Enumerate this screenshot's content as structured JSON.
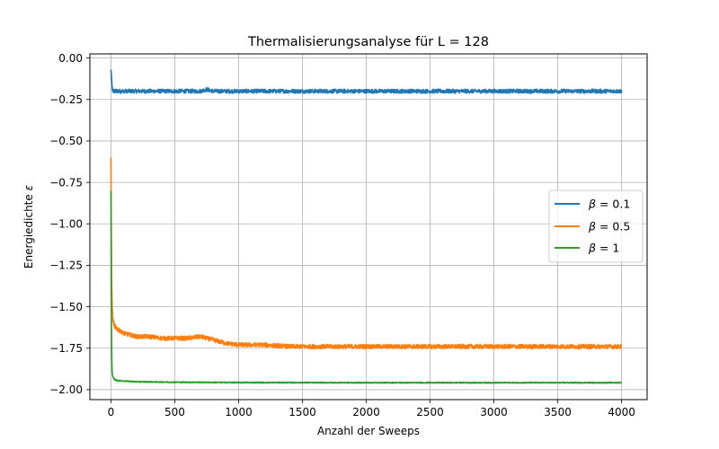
{
  "chart_data": {
    "type": "line",
    "title": "Thermalisierungsanalyse für L = 128",
    "xlabel": "Anzahl der Sweeps",
    "ylabel_text": "Energiedichte ",
    "ylabel_symbol": "ε",
    "xlim": [
      -165,
      4200
    ],
    "ylim": [
      -2.06,
      0.025
    ],
    "x_ticks": [
      0,
      500,
      1000,
      1500,
      2000,
      2500,
      3000,
      3500,
      4000
    ],
    "x_tick_labels": [
      "0",
      "500",
      "1000",
      "1500",
      "2000",
      "2500",
      "3000",
      "3500",
      "4000"
    ],
    "y_ticks": [
      0.0,
      -0.25,
      -0.5,
      -0.75,
      -1.0,
      -1.25,
      -1.5,
      -1.75,
      -2.0
    ],
    "y_tick_labels": [
      "0.00",
      "−0.25",
      "−0.50",
      "−0.75",
      "−1.00",
      "−1.25",
      "−1.50",
      "−1.75",
      "−2.00"
    ],
    "grid": true,
    "legend_position": "right",
    "series": [
      {
        "beta_symbol": "β",
        "name": " = 0.1",
        "color": "#1f77b4",
        "x": [
          0,
          5,
          10,
          20,
          40,
          60,
          100,
          150,
          200,
          300,
          400,
          500,
          600,
          700,
          750,
          800,
          900,
          1000,
          1200,
          1400,
          1600,
          1800,
          2000,
          2200,
          2400,
          2600,
          2800,
          3000,
          3200,
          3400,
          3600,
          3800,
          4000
        ],
        "y": [
          -0.07,
          -0.12,
          -0.19,
          -0.2,
          -0.2,
          -0.2,
          -0.2,
          -0.2,
          -0.2,
          -0.2,
          -0.2,
          -0.2,
          -0.2,
          -0.2,
          -0.19,
          -0.2,
          -0.2,
          -0.2,
          -0.2,
          -0.2,
          -0.2,
          -0.2,
          -0.2,
          -0.2,
          -0.2,
          -0.2,
          -0.2,
          -0.2,
          -0.2,
          -0.2,
          -0.2,
          -0.2,
          -0.2
        ],
        "noise": 0.012
      },
      {
        "beta_symbol": "β",
        "name": " = 0.5",
        "color": "#ff7f0e",
        "x": [
          0,
          3,
          6,
          10,
          15,
          25,
          40,
          60,
          80,
          100,
          150,
          200,
          300,
          400,
          500,
          600,
          700,
          800,
          900,
          1000,
          1200,
          1400,
          1600,
          1800,
          2000,
          2400,
          2800,
          3200,
          3600,
          4000
        ],
        "y": [
          -0.6,
          -1.0,
          -1.35,
          -1.5,
          -1.57,
          -1.61,
          -1.63,
          -1.64,
          -1.65,
          -1.66,
          -1.67,
          -1.68,
          -1.68,
          -1.69,
          -1.69,
          -1.69,
          -1.68,
          -1.7,
          -1.72,
          -1.73,
          -1.73,
          -1.74,
          -1.74,
          -1.74,
          -1.74,
          -1.74,
          -1.74,
          -1.74,
          -1.74,
          -1.74
        ],
        "noise": 0.013
      },
      {
        "beta_symbol": "β",
        "name": " = 1",
        "color": "#2ca02c",
        "x": [
          0,
          2,
          4,
          6,
          8,
          10,
          15,
          20,
          30,
          50,
          80,
          100,
          200,
          500,
          1000,
          2000,
          3000,
          4000
        ],
        "y": [
          -0.8,
          -1.3,
          -1.6,
          -1.78,
          -1.86,
          -1.9,
          -1.92,
          -1.93,
          -1.94,
          -1.945,
          -1.947,
          -1.948,
          -1.952,
          -1.955,
          -1.957,
          -1.958,
          -1.958,
          -1.958
        ],
        "noise": 0.003
      }
    ]
  }
}
